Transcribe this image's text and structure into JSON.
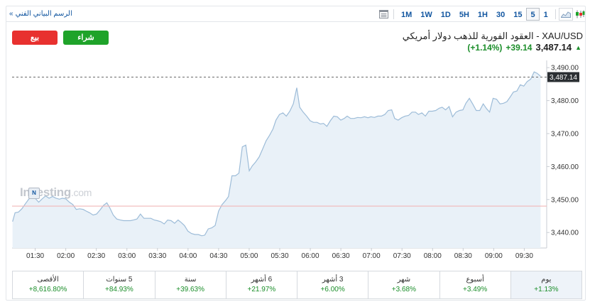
{
  "toolbar": {
    "technical_chart_link": "الرسم البياني الفني",
    "technical_chart_chevron": "»",
    "periods": [
      "1M",
      "1W",
      "1D",
      "5H",
      "1H",
      "30",
      "15",
      "5",
      "1"
    ],
    "active_period": "5",
    "icons": [
      "table-icon",
      "area-chart-icon",
      "candlestick-icon"
    ]
  },
  "trade": {
    "sell_label": "بيع",
    "buy_label": "شراء",
    "sell_color": "#e8312f",
    "buy_color": "#1fa32a"
  },
  "instrument": {
    "title": "XAU/USD - العقود الفورية للذهب دولار أمريكي",
    "price": "3,487.14",
    "change": "+39.14",
    "change_pct": "(+1.14%)",
    "direction_icon": "up-arrow-icon",
    "positive_color": "#1b8e2a"
  },
  "watermark": {
    "brand": "Investing",
    "suffix": ".com",
    "badge": "N"
  },
  "chart_data": {
    "type": "area",
    "y_ticks": [
      "3,490.00",
      "3,480.00",
      "3,470.00",
      "3,460.00",
      "3,450.00",
      "3,440.00"
    ],
    "y_tick_values": [
      3490,
      3480,
      3470,
      3460,
      3450,
      3440
    ],
    "ylim": [
      3435.3,
      3492.2
    ],
    "x_ticks": [
      "01:30",
      "02:00",
      "02:30",
      "03:00",
      "03:30",
      "04:00",
      "04:30",
      "05:00",
      "05:30",
      "06:00",
      "06:30",
      "07:00",
      "07:30",
      "08:00",
      "08:30",
      "09:00",
      "09:30"
    ],
    "x_tick_values": [
      90,
      120,
      150,
      180,
      210,
      240,
      270,
      300,
      330,
      360,
      390,
      420,
      450,
      480,
      510,
      540,
      570
    ],
    "xlim": [
      67.3,
      592
    ],
    "x_unit": "minutes after 00:00",
    "current_price_label": "3,487.14",
    "current_price": 3487.14,
    "reference_price": 3448.0,
    "line_color": "#9dbcd8",
    "fill_color": "#e9f1f8",
    "reference_line_color": "#f2b8b8",
    "x": [
      67.8,
      70.2,
      73.6,
      76.9,
      80.3,
      83.7,
      87.1,
      90.5,
      93.4,
      96.8,
      100.2,
      103.6,
      107.0,
      110.4,
      113.8,
      116.7,
      120.1,
      123.5,
      126.9,
      130.3,
      133.7,
      137.1,
      140.0,
      143.4,
      146.8,
      150.2,
      153.6,
      157.0,
      160.3,
      163.2,
      166.6,
      170.0,
      173.4,
      176.8,
      180.2,
      183.6,
      186.5,
      189.9,
      193.3,
      196.7,
      200.1,
      203.5,
      206.9,
      209.8,
      213.2,
      216.6,
      220.0,
      223.4,
      226.8,
      230.2,
      233.1,
      236.5,
      239.9,
      243.3,
      246.7,
      250.1,
      253.5,
      256.4,
      259.8,
      263.2,
      266.6,
      270.0,
      273.4,
      276.8,
      279.7,
      283.1,
      286.5,
      289.9,
      293.3,
      296.7,
      300.1,
      303.0,
      306.4,
      309.8,
      313.2,
      316.6,
      320.0,
      323.4,
      326.3,
      329.7,
      333.1,
      336.5,
      339.9,
      343.3,
      346.7,
      349.6,
      353.0,
      356.4,
      359.8,
      363.2,
      366.6,
      370.0,
      372.9,
      376.3,
      379.7,
      383.1,
      386.5,
      389.9,
      393.3,
      396.2,
      399.6,
      403.0,
      406.4,
      409.8,
      413.2,
      416.6,
      419.5,
      422.9,
      426.3,
      429.7,
      433.1,
      436.5,
      439.9,
      442.8,
      446.2,
      449.6,
      453.0,
      456.4,
      459.8,
      463.2,
      466.1,
      469.5,
      472.9,
      476.3,
      479.7,
      483.1,
      486.5,
      489.4,
      492.8,
      496.2,
      499.6,
      503.0,
      506.4,
      509.8,
      512.7,
      516.1,
      519.5,
      522.9,
      526.3,
      529.7,
      533.1,
      536.0,
      539.4,
      542.8,
      546.2,
      549.6,
      553.0,
      556.4,
      559.3,
      562.7,
      566.1,
      569.5,
      572.9,
      576.3,
      579.7,
      582.6,
      586.0
    ],
    "values": [
      3443.3,
      3446.0,
      3446.2,
      3447.2,
      3448.7,
      3450.1,
      3451.1,
      3450.2,
      3449.2,
      3450.2,
      3451.1,
      3450.4,
      3450.9,
      3450.4,
      3450.1,
      3450.4,
      3450.2,
      3449.2,
      3448.5,
      3447.0,
      3447.2,
      3447.0,
      3446.5,
      3446.0,
      3445.3,
      3445.6,
      3446.8,
      3448.2,
      3449.0,
      3447.5,
      3445.3,
      3444.1,
      3443.8,
      3443.6,
      3443.6,
      3443.6,
      3443.8,
      3444.1,
      3445.6,
      3444.3,
      3444.3,
      3444.3,
      3443.8,
      3443.6,
      3443.3,
      3442.6,
      3443.8,
      3443.6,
      3442.8,
      3443.8,
      3443.1,
      3442.1,
      3440.4,
      3439.7,
      3439.4,
      3439.4,
      3439.0,
      3439.2,
      3441.1,
      3441.4,
      3442.1,
      3446.5,
      3448.5,
      3449.7,
      3450.9,
      3457.2,
      3457.2,
      3458.0,
      3466.0,
      3466.5,
      3458.7,
      3460.2,
      3461.4,
      3462.9,
      3465.3,
      3467.8,
      3469.5,
      3471.4,
      3474.1,
      3475.8,
      3476.3,
      3475.3,
      3476.8,
      3479.0,
      3483.9,
      3478.0,
      3476.5,
      3475.3,
      3473.9,
      3473.4,
      3473.4,
      3472.9,
      3473.1,
      3472.2,
      3473.9,
      3475.3,
      3475.1,
      3474.1,
      3474.6,
      3475.3,
      3474.6,
      3474.6,
      3474.9,
      3474.8,
      3475.1,
      3474.8,
      3475.1,
      3474.9,
      3475.3,
      3475.3,
      3475.8,
      3477.0,
      3477.2,
      3474.6,
      3474.1,
      3474.8,
      3475.3,
      3475.5,
      3476.5,
      3476.5,
      3475.8,
      3476.3,
      3475.3,
      3476.8,
      3476.8,
      3477.0,
      3477.7,
      3478.0,
      3477.2,
      3478.2,
      3475.1,
      3476.5,
      3477.0,
      3477.2,
      3479.2,
      3480.7,
      3478.9,
      3477.0,
      3477.0,
      3479.0,
      3477.5,
      3476.5,
      3480.7,
      3480.4,
      3479.0,
      3479.2,
      3479.7,
      3481.2,
      3482.6,
      3482.9,
      3484.8,
      3484.4,
      3485.8,
      3486.5,
      3488.7,
      3488.3,
      3487.4
    ]
  },
  "performance": [
    {
      "label": "الأقصى",
      "value": "+8,616.80%"
    },
    {
      "label": "5 سنوات",
      "value": "+84.93%"
    },
    {
      "label": "سنة",
      "value": "+39.63%"
    },
    {
      "label": "6 أشهر",
      "value": "+21.97%"
    },
    {
      "label": "3 أشهر",
      "value": "+6.00%"
    },
    {
      "label": "شهر",
      "value": "+3.68%"
    },
    {
      "label": "أسبوع",
      "value": "+3.49%"
    },
    {
      "label": "يوم",
      "value": "+1.13%"
    }
  ],
  "performance_active_index": 7
}
